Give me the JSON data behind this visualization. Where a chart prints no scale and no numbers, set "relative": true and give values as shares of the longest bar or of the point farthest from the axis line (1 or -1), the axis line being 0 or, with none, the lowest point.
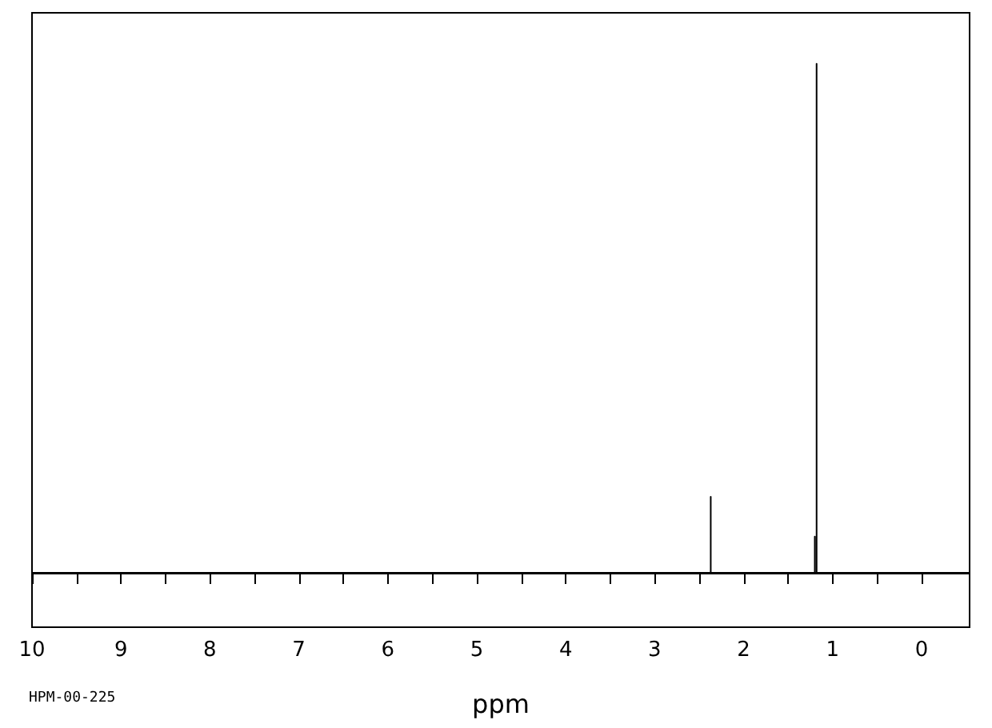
{
  "chart_data": {
    "type": "line",
    "relative": true,
    "xlabel": "ppm",
    "annotations": [
      "HPM-00-225"
    ],
    "xlim": [
      10,
      -0.54
    ],
    "xticks": [
      10,
      {
        "value": 9.5,
        "label": null
      },
      9,
      {
        "value": 8.5,
        "label": null
      },
      8,
      {
        "value": 7.5,
        "label": null
      },
      7,
      {
        "value": 6.5,
        "label": null
      },
      6,
      {
        "value": 5.5,
        "label": null
      },
      5,
      {
        "value": 4.5,
        "label": null
      },
      4,
      {
        "value": 3.5,
        "label": null
      },
      3,
      {
        "value": 2.5,
        "label": null
      },
      2,
      {
        "value": 1.5,
        "label": null
      },
      1,
      {
        "value": 0.5,
        "label": null
      },
      0
    ],
    "series": [
      {
        "color": "#000000",
        "x": [
          10,
          2.37,
          2.37,
          2.37,
          1.2,
          1.2,
          1.2,
          1.18,
          1.18,
          1.18,
          -0.54
        ],
        "values": [
          0,
          0,
          0.149,
          0,
          0,
          0.071,
          0,
          0,
          1,
          0,
          0
        ]
      }
    ],
    "grid": false,
    "marker": "none",
    "line_style": "solid"
  }
}
